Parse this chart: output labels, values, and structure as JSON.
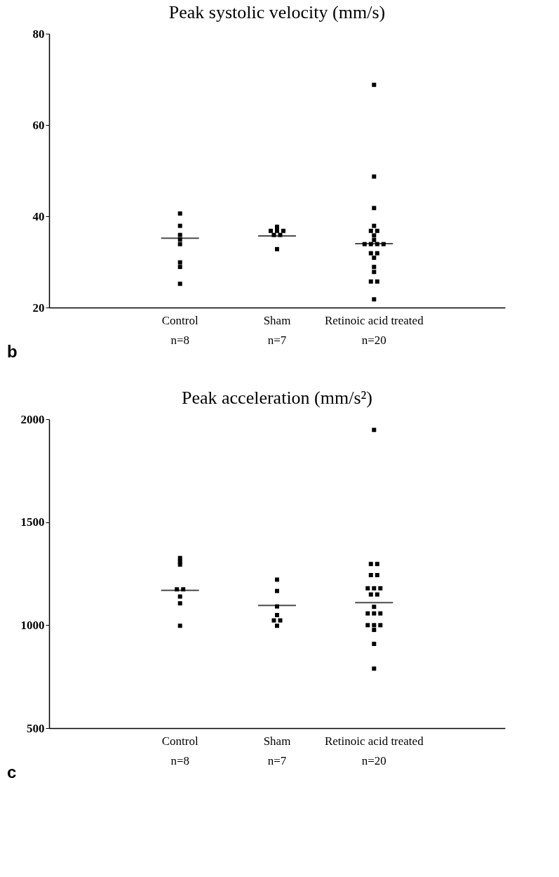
{
  "chart_data": [
    {
      "type": "scatter",
      "title": "Peak systolic velocity (mm/s)",
      "categories": [
        "Control\nn=8",
        "Sham\nn=7",
        "Retinoic acid treated\nn=20"
      ],
      "ylim": [
        20,
        80
      ],
      "yticks": [
        20,
        40,
        60,
        80
      ],
      "grid": false,
      "legend": false,
      "annotations": [
        "b"
      ],
      "series": [
        {
          "marker": "square",
          "color": "#000000",
          "x": [
            "Control\nn=8",
            "Control\nn=8",
            "Control\nn=8",
            "Control\nn=8",
            "Control\nn=8",
            "Control\nn=8",
            "Control\nn=8",
            "Control\nn=8",
            "Sham\nn=7",
            "Sham\nn=7",
            "Sham\nn=7",
            "Sham\nn=7",
            "Sham\nn=7",
            "Sham\nn=7",
            "Sham\nn=7",
            "Retinoic acid treated\nn=20",
            "Retinoic acid treated\nn=20",
            "Retinoic acid treated\nn=20",
            "Retinoic acid treated\nn=20",
            "Retinoic acid treated\nn=20",
            "Retinoic acid treated\nn=20",
            "Retinoic acid treated\nn=20",
            "Retinoic acid treated\nn=20",
            "Retinoic acid treated\nn=20",
            "Retinoic acid treated\nn=20",
            "Retinoic acid treated\nn=20",
            "Retinoic acid treated\nn=20",
            "Retinoic acid treated\nn=20",
            "Retinoic acid treated\nn=20",
            "Retinoic acid treated\nn=20",
            "Retinoic acid treated\nn=20",
            "Retinoic acid treated\nn=20",
            "Retinoic acid treated\nn=20",
            "Retinoic acid treated\nn=20",
            "Retinoic acid treated\nn=20"
          ],
          "values": [
            40.6,
            37.9,
            35.9,
            34.9,
            33.9,
            29.9,
            28.9,
            25.2,
            37.7,
            36.8,
            36.8,
            36.8,
            35.9,
            35.9,
            32.8,
            68.8,
            48.7,
            41.8,
            37.9,
            36.8,
            36.8,
            35.8,
            34.8,
            33.9,
            33.9,
            33.9,
            33.9,
            31.9,
            31.9,
            30.9,
            28.9,
            27.8,
            25.7,
            25.7,
            21.8
          ]
        },
        {
          "type": "box",
          "color": "#000000",
          "boxes": [
            {
              "low": 35.2,
              "q1": 35.2,
              "median": 35.2,
              "q3": 35.2,
              "high": 35.2
            },
            {
              "low": 35.7,
              "q1": 35.7,
              "median": 35.7,
              "q3": 35.7,
              "high": 35.7
            },
            {
              "low": 34.0,
              "q1": 34.0,
              "median": 34.0,
              "q3": 34.0,
              "high": 34.0
            }
          ]
        }
      ]
    },
    {
      "type": "scatter",
      "title": "Peak acceleration (mm/s²)",
      "categories": [
        "Control\nn=8",
        "Sham\nn=7",
        "Retinoic acid treated\nn=20"
      ],
      "ylim": [
        500,
        2000
      ],
      "yticks": [
        500,
        1000,
        1500,
        2000
      ],
      "grid": false,
      "legend": false,
      "annotations": [
        "c"
      ],
      "series": [
        {
          "marker": "square",
          "color": "#000000",
          "x": [
            "Control\nn=8",
            "Control\nn=8",
            "Control\nn=8",
            "Control\nn=8",
            "Control\nn=8",
            "Control\nn=8",
            "Control\nn=8",
            "Control\nn=8",
            "Sham\nn=7",
            "Sham\nn=7",
            "Sham\nn=7",
            "Sham\nn=7",
            "Sham\nn=7",
            "Sham\nn=7",
            "Sham\nn=7",
            "Retinoic acid treated\nn=20",
            "Retinoic acid treated\nn=20",
            "Retinoic acid treated\nn=20",
            "Retinoic acid treated\nn=20",
            "Retinoic acid treated\nn=20",
            "Retinoic acid treated\nn=20",
            "Retinoic acid treated\nn=20",
            "Retinoic acid treated\nn=20",
            "Retinoic acid treated\nn=20",
            "Retinoic acid treated\nn=20",
            "Retinoic acid treated\nn=20",
            "Retinoic acid treated\nn=20",
            "Retinoic acid treated\nn=20",
            "Retinoic acid treated\nn=20",
            "Retinoic acid treated\nn=20",
            "Retinoic acid treated\nn=20",
            "Retinoic acid treated\nn=20",
            "Retinoic acid treated\nn=20",
            "Retinoic acid treated\nn=20",
            "Retinoic acid treated\nn=20"
          ],
          "values": [
            1326,
            1309,
            1294,
            1174,
            1174,
            1139,
            1106,
            997,
            1221,
            1166,
            1091,
            1049,
            1023,
            1023,
            997,
            1948,
            1297,
            1297,
            1243,
            1243,
            1179,
            1179,
            1179,
            1149,
            1149,
            1089,
            1057,
            1057,
            1057,
            1000,
            1000,
            1000,
            977,
            909,
            789
          ]
        },
        {
          "type": "box",
          "color": "#000000",
          "boxes": [
            {
              "low": 1169,
              "q1": 1169,
              "median": 1169,
              "q3": 1169,
              "high": 1169
            },
            {
              "low": 1096,
              "q1": 1096,
              "median": 1096,
              "q3": 1096,
              "high": 1096
            },
            {
              "low": 1109,
              "q1": 1109,
              "median": 1109,
              "q3": 1109,
              "high": 1109
            }
          ]
        }
      ]
    }
  ]
}
